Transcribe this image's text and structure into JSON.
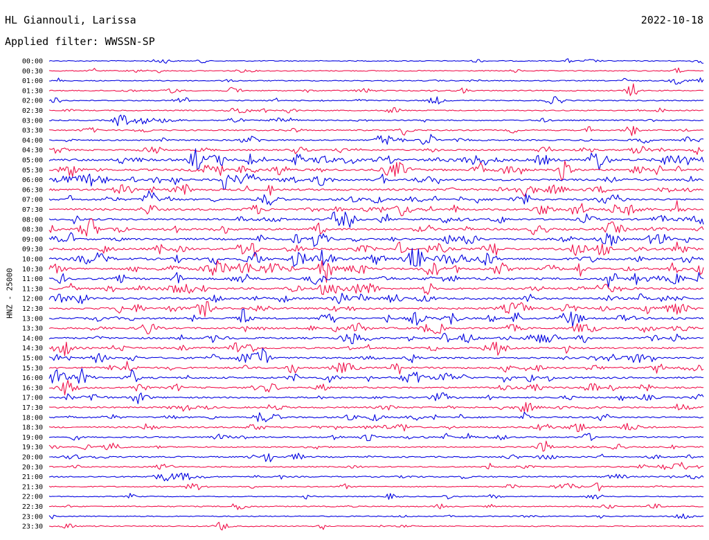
{
  "header": {
    "station": "HL Giannouli, Larissa",
    "date": "2022-10-18",
    "filter": "Applied filter: WWSSN-SP",
    "channel": "HNZ - 25000"
  },
  "chart_data": {
    "type": "line",
    "ylabel": "HNZ - 25000",
    "xlim": [
      0,
      30
    ],
    "x_unit": "minutes within each 30-minute row",
    "series_colors": [
      "#0000e0",
      "#f0104a"
    ],
    "rows": [
      {
        "label": "00:00",
        "activity": 0.1
      },
      {
        "label": "00:30",
        "activity": 0.15
      },
      {
        "label": "01:00",
        "activity": 0.15
      },
      {
        "label": "01:30",
        "activity": 0.2
      },
      {
        "label": "02:00",
        "activity": 0.2
      },
      {
        "label": "02:30",
        "activity": 0.2
      },
      {
        "label": "03:00",
        "activity": 0.25
      },
      {
        "label": "03:30",
        "activity": 0.3
      },
      {
        "label": "04:00",
        "activity": 0.35
      },
      {
        "label": "04:30",
        "activity": 0.45
      },
      {
        "label": "05:00",
        "activity": 0.85
      },
      {
        "label": "05:30",
        "activity": 0.75
      },
      {
        "label": "06:00",
        "activity": 0.7
      },
      {
        "label": "06:30",
        "activity": 0.7
      },
      {
        "label": "07:00",
        "activity": 0.6
      },
      {
        "label": "07:30",
        "activity": 0.7
      },
      {
        "label": "08:00",
        "activity": 0.6
      },
      {
        "label": "08:30",
        "activity": 0.65
      },
      {
        "label": "09:00",
        "activity": 0.7
      },
      {
        "label": "09:30",
        "activity": 0.8
      },
      {
        "label": "10:00",
        "activity": 0.8
      },
      {
        "label": "10:30",
        "activity": 0.8
      },
      {
        "label": "11:00",
        "activity": 0.7
      },
      {
        "label": "11:30",
        "activity": 0.7
      },
      {
        "label": "12:00",
        "activity": 0.7
      },
      {
        "label": "12:30",
        "activity": 0.65
      },
      {
        "label": "13:00",
        "activity": 0.6
      },
      {
        "label": "13:30",
        "activity": 0.55
      },
      {
        "label": "14:00",
        "activity": 0.6
      },
      {
        "label": "14:30",
        "activity": 0.55
      },
      {
        "label": "15:00",
        "activity": 0.55
      },
      {
        "label": "15:30",
        "activity": 0.6
      },
      {
        "label": "16:00",
        "activity": 0.6
      },
      {
        "label": "16:30",
        "activity": 0.5
      },
      {
        "label": "17:00",
        "activity": 0.45
      },
      {
        "label": "17:30",
        "activity": 0.45
      },
      {
        "label": "18:00",
        "activity": 0.45
      },
      {
        "label": "18:30",
        "activity": 0.4
      },
      {
        "label": "19:00",
        "activity": 0.35
      },
      {
        "label": "19:30",
        "activity": 0.3
      },
      {
        "label": "20:00",
        "activity": 0.35
      },
      {
        "label": "20:30",
        "activity": 0.25
      },
      {
        "label": "21:00",
        "activity": 0.3
      },
      {
        "label": "21:30",
        "activity": 0.2
      },
      {
        "label": "22:00",
        "activity": 0.1
      },
      {
        "label": "22:30",
        "activity": 0.2
      },
      {
        "label": "23:00",
        "activity": 0.15
      },
      {
        "label": "23:30",
        "activity": 0.15
      }
    ]
  }
}
